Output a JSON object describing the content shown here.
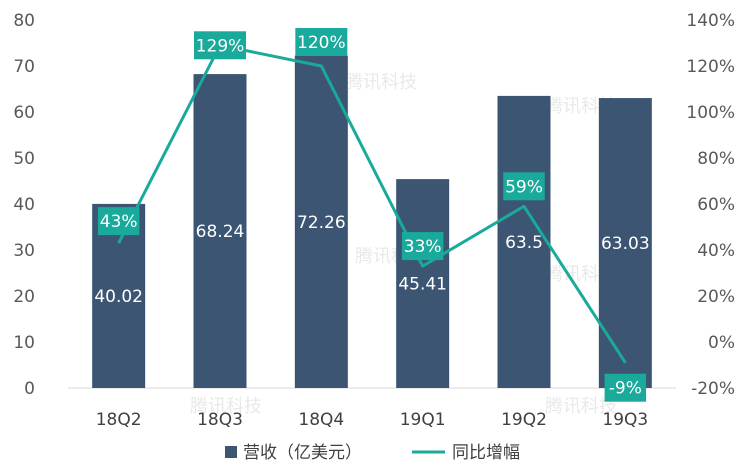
{
  "chart_data": {
    "type": "bar",
    "categories": [
      "18Q2",
      "18Q3",
      "18Q4",
      "19Q1",
      "19Q2",
      "19Q3"
    ],
    "series": [
      {
        "name": "营收（亿美元）",
        "type": "bar",
        "axis": "left",
        "values": [
          40.02,
          68.24,
          72.26,
          45.41,
          63.5,
          63.03
        ],
        "labels": [
          "40.02",
          "68.24",
          "72.26",
          "45.41",
          "63.5",
          "63.03"
        ],
        "color": "#3b5572"
      },
      {
        "name": "同比增幅",
        "type": "line",
        "axis": "right",
        "values": [
          43,
          129,
          120,
          33,
          59,
          -9
        ],
        "labels": [
          "43%",
          "129%",
          "120%",
          "33%",
          "59%",
          "-9%"
        ],
        "color": "#1aaa9b"
      }
    ],
    "y_left": {
      "ylim": [
        0,
        80
      ],
      "ticks": [
        0,
        10,
        20,
        30,
        40,
        50,
        60,
        70,
        80
      ],
      "tick_labels": [
        "0",
        "10",
        "20",
        "30",
        "40",
        "50",
        "60",
        "70",
        "80"
      ]
    },
    "y_right": {
      "ylim": [
        -20,
        140
      ],
      "ticks": [
        -20,
        0,
        20,
        40,
        60,
        80,
        100,
        120,
        140
      ],
      "tick_labels": [
        "-20%",
        "0%",
        "20%",
        "40%",
        "60%",
        "80%",
        "100%",
        "120%",
        "140%"
      ]
    },
    "grid": false,
    "legend_position": "bottom-center",
    "watermark": "腾讯科技"
  }
}
